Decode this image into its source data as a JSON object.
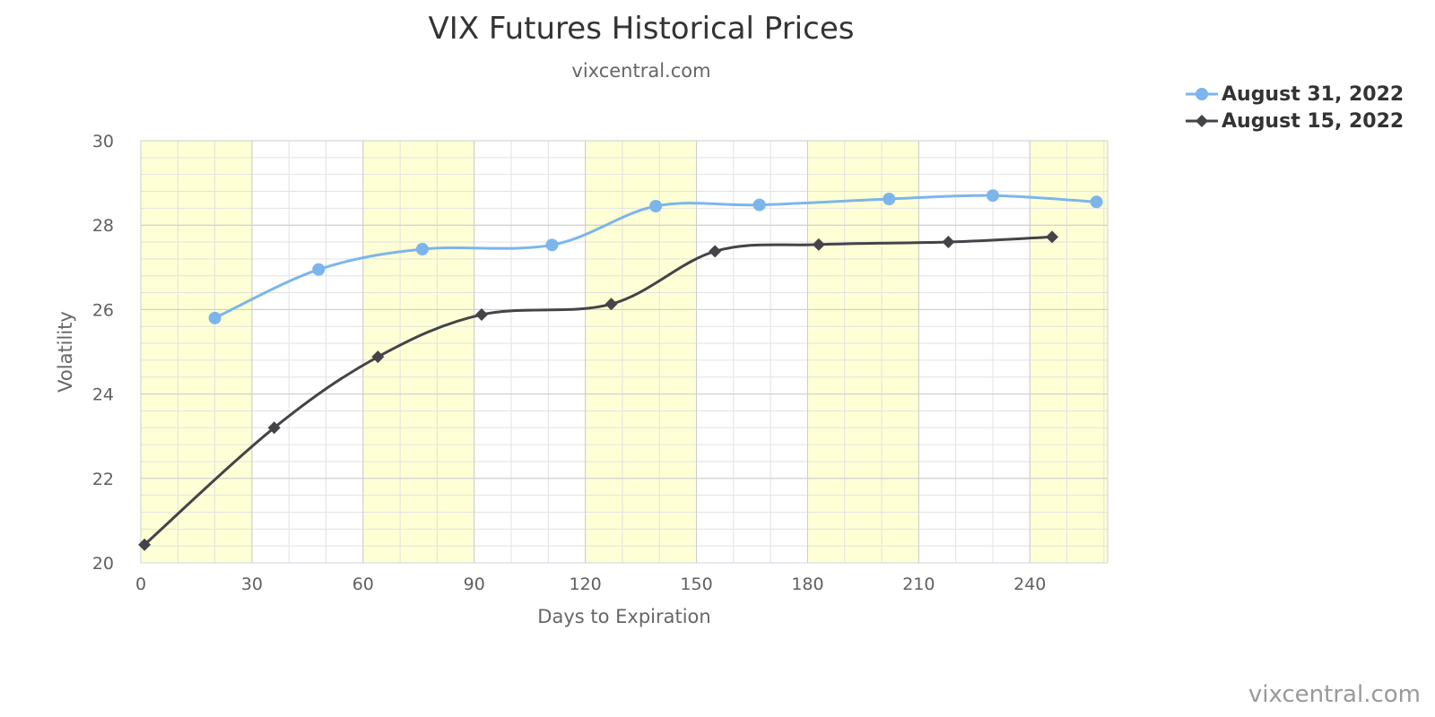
{
  "chart_data": {
    "type": "line",
    "title": "VIX Futures Historical Prices",
    "subtitle": "vixcentral.com",
    "xlabel": "Days to Expiration",
    "ylabel": "Volatility",
    "xlim": [
      0,
      261
    ],
    "ylim": [
      20,
      30
    ],
    "xticks": [
      0,
      30,
      60,
      90,
      120,
      150,
      180,
      210,
      240
    ],
    "yticks": [
      20,
      22,
      24,
      26,
      28,
      30
    ],
    "grid": true,
    "legend_position": "top-right",
    "bands": [
      [
        0,
        30
      ],
      [
        60,
        90
      ],
      [
        120,
        150
      ],
      [
        180,
        210
      ],
      [
        240,
        261
      ]
    ],
    "band_color": "#ffffd5",
    "series": [
      {
        "name": "August 31, 2022",
        "color": "#7cb5ec",
        "marker": "circle",
        "x": [
          20,
          48,
          76,
          111,
          139,
          167,
          202,
          230,
          258
        ],
        "y": [
          25.8,
          26.95,
          27.43,
          27.53,
          28.45,
          28.48,
          28.62,
          28.7,
          28.55
        ]
      },
      {
        "name": "August 15, 2022",
        "color": "#434348",
        "marker": "diamond",
        "x": [
          1,
          36,
          64,
          92,
          127,
          155,
          183,
          218,
          246
        ],
        "y": [
          20.43,
          23.2,
          24.88,
          25.88,
          26.13,
          27.38,
          27.54,
          27.6,
          27.72
        ]
      }
    ]
  },
  "watermark": "vixcentral.com"
}
